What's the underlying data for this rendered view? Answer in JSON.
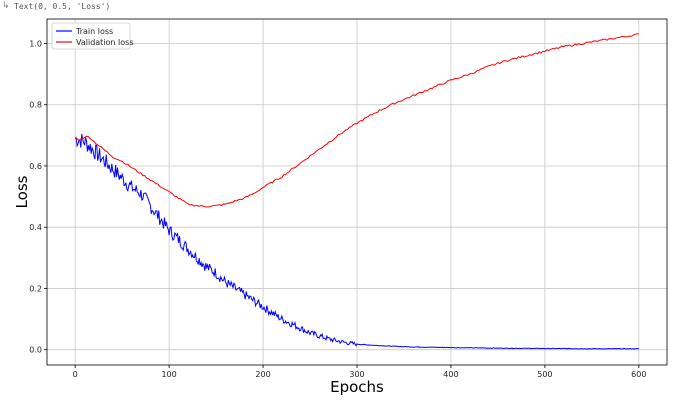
{
  "cell_output": {
    "text": "Text(0, 0.5, 'Loss')"
  },
  "colors": {
    "train": "#0000ff",
    "validation": "#ff0000",
    "grid": "#c8c8c8",
    "axes": "#000000"
  },
  "chart_data": {
    "type": "line",
    "title": "",
    "xlabel": "Epochs",
    "ylabel": "Loss",
    "xlim": [
      -30,
      630
    ],
    "ylim": [
      -0.05,
      1.08
    ],
    "xticks": [
      "0",
      "100",
      "200",
      "300",
      "400",
      "500",
      "600"
    ],
    "yticks": [
      "0.0",
      "0.2",
      "0.4",
      "0.6",
      "0.8",
      "1.0"
    ],
    "grid": true,
    "legend_position": "top-left",
    "series": [
      {
        "name": "Train loss",
        "color": "#0000ff",
        "noisy": true,
        "x": [
          0,
          10,
          20,
          30,
          40,
          50,
          60,
          70,
          80,
          90,
          100,
          110,
          120,
          130,
          140,
          150,
          160,
          170,
          180,
          190,
          200,
          210,
          220,
          230,
          240,
          250,
          260,
          270,
          280,
          290,
          300,
          320,
          340,
          360,
          380,
          400,
          450,
          500,
          550,
          600
        ],
        "y": [
          0.69,
          0.68,
          0.65,
          0.62,
          0.59,
          0.56,
          0.53,
          0.51,
          0.47,
          0.43,
          0.39,
          0.36,
          0.33,
          0.3,
          0.27,
          0.25,
          0.22,
          0.2,
          0.18,
          0.16,
          0.14,
          0.12,
          0.1,
          0.085,
          0.07,
          0.055,
          0.045,
          0.035,
          0.028,
          0.022,
          0.018,
          0.014,
          0.011,
          0.009,
          0.008,
          0.007,
          0.005,
          0.004,
          0.003,
          0.003
        ]
      },
      {
        "name": "Validation loss",
        "color": "#ff0000",
        "noisy": false,
        "x": [
          0,
          5,
          10,
          15,
          20,
          30,
          40,
          50,
          60,
          70,
          80,
          90,
          100,
          110,
          120,
          130,
          140,
          150,
          160,
          170,
          180,
          190,
          200,
          220,
          240,
          260,
          280,
          300,
          320,
          340,
          360,
          380,
          400,
          420,
          440,
          460,
          480,
          500,
          520,
          540,
          560,
          580,
          600
        ],
        "y": [
          0.69,
          0.685,
          0.695,
          0.695,
          0.68,
          0.655,
          0.63,
          0.615,
          0.595,
          0.575,
          0.555,
          0.535,
          0.515,
          0.495,
          0.475,
          0.47,
          0.468,
          0.47,
          0.475,
          0.485,
          0.495,
          0.51,
          0.53,
          0.565,
          0.61,
          0.655,
          0.7,
          0.74,
          0.775,
          0.805,
          0.83,
          0.855,
          0.88,
          0.9,
          0.925,
          0.945,
          0.96,
          0.975,
          0.99,
          1.0,
          1.01,
          1.02,
          1.03
        ]
      }
    ]
  }
}
